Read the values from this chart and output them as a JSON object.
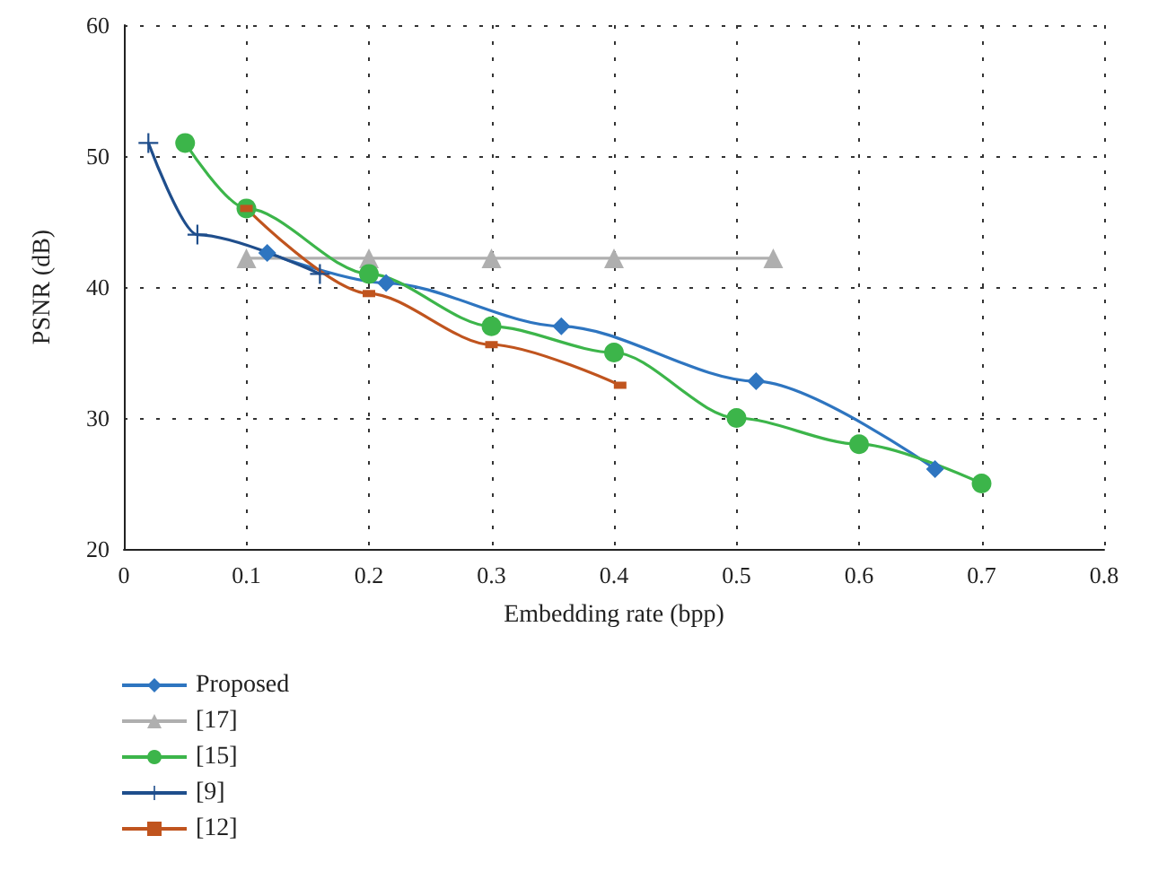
{
  "chart_data": {
    "type": "line",
    "xlabel": "Embedding rate (bpp)",
    "ylabel": "PSNR (dB)",
    "xlim": [
      0,
      0.8
    ],
    "xticks": [
      0,
      0.1,
      0.2,
      0.3,
      0.4,
      0.5,
      0.6,
      0.7,
      0.8
    ],
    "ylim": [
      20,
      60
    ],
    "yticks": [
      20,
      30,
      40,
      50,
      60
    ],
    "grid": true,
    "legend": "bottom",
    "line_style": "solid",
    "series": [
      {
        "name": "Proposed",
        "color": "#2e75c0",
        "marker": "diamond",
        "x": [
          0.117,
          0.214,
          0.357,
          0.516,
          0.662
        ],
        "values": [
          42.6,
          40.3,
          37,
          32.8,
          26.1
        ]
      },
      {
        "name": "[17]",
        "color": "#afafaf",
        "marker": "triangle",
        "x": [
          0.1,
          0.2,
          0.3,
          0.4,
          0.53
        ],
        "values": [
          42.2,
          42.2,
          42.2,
          42.2,
          42.2
        ]
      },
      {
        "name": "[15]",
        "color": "#3cb54a",
        "marker": "circle",
        "x": [
          0.05,
          0.1,
          0.2,
          0.3,
          0.4,
          0.5,
          0.6,
          0.7
        ],
        "values": [
          51,
          46,
          41,
          37,
          35,
          30,
          28,
          25
        ]
      },
      {
        "name": "[9]",
        "color": "#1f4e8c",
        "marker": "cross",
        "x": [
          0.02,
          0.06,
          0.16
        ],
        "values": [
          51,
          44,
          41
        ]
      },
      {
        "name": "[12]",
        "color": "#c0541e",
        "marker": "square",
        "x": [
          0.1,
          0.2,
          0.3,
          0.405
        ],
        "values": [
          46,
          39.5,
          35.6,
          32.5
        ]
      }
    ]
  }
}
